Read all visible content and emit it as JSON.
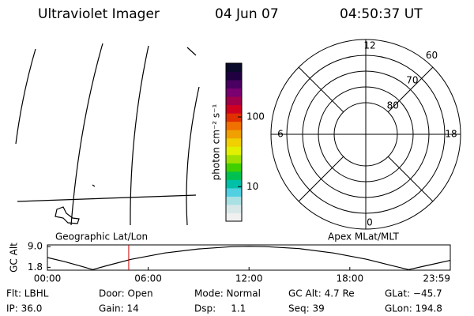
{
  "header": {
    "instrument": "Ultraviolet Imager",
    "date": "04 Jun 07",
    "time": "04:50:37 UT"
  },
  "colorbar": {
    "label": "photon cm⁻² s⁻¹",
    "log": true,
    "lim": [
      3.2,
      590
    ],
    "ticks": [
      10,
      100
    ],
    "colors": [
      "#f0f0f0",
      "#d8e8e8",
      "#a8e0e4",
      "#50d0e0",
      "#00c0a8",
      "#00c050",
      "#40d000",
      "#a0e000",
      "#e0f000",
      "#f0d000",
      "#f0a000",
      "#f07000",
      "#e03000",
      "#d00020",
      "#a0004a",
      "#7a0070",
      "#4a0060",
      "#200040",
      "#0a0a2a"
    ]
  },
  "polar": {
    "rings": [
      80,
      75,
      70,
      65,
      60
    ],
    "lat_labels": [
      80,
      70,
      60
    ],
    "mlt_ticks": [
      0,
      6,
      12,
      18
    ]
  },
  "chart_data": {
    "type": "line",
    "ylabel": "GC Alt",
    "left_label": "Geographic Lat/Lon",
    "right_label": "Apex MLat/MLT",
    "x": [
      0,
      1,
      2,
      2.7,
      3.5,
      5,
      7,
      9,
      11,
      12,
      13,
      15,
      17,
      19,
      20.5,
      21.5,
      22.5,
      23.98
    ],
    "series": [
      {
        "color": "#000000",
        "values": [
          5.2,
          3.8,
          2.2,
          1.0,
          2.3,
          4.6,
          6.8,
          8.2,
          9.0,
          9.1,
          9.0,
          8.3,
          6.8,
          4.6,
          2.4,
          1.0,
          2.3,
          4.2
        ]
      }
    ],
    "xlim": [
      0,
      23.98
    ],
    "ylim": [
      0.8,
      9.6
    ],
    "xticks": [
      {
        "value": 0,
        "label": "00:00"
      },
      {
        "value": 6,
        "label": "06:00"
      },
      {
        "value": 12,
        "label": "12:00"
      },
      {
        "value": 18,
        "label": "18:00"
      },
      {
        "value": 23.98,
        "label": "23:59"
      }
    ],
    "yticks": [
      {
        "value": 9.0,
        "label": "9.0"
      },
      1.8
    ],
    "marker": {
      "x": 4.84,
      "color": "#cc0000"
    }
  },
  "info": {
    "rows": [
      [
        "Flt: LBHL",
        "Door: Open",
        "Mode: Normal",
        "GC Alt: 4.7 Re",
        "GLat: −45.7"
      ],
      [
        "IP: 36.0",
        "Gain: 14",
        "Dsp:     1.1",
        "Seq: 39",
        "GLon: 194.8"
      ]
    ]
  }
}
